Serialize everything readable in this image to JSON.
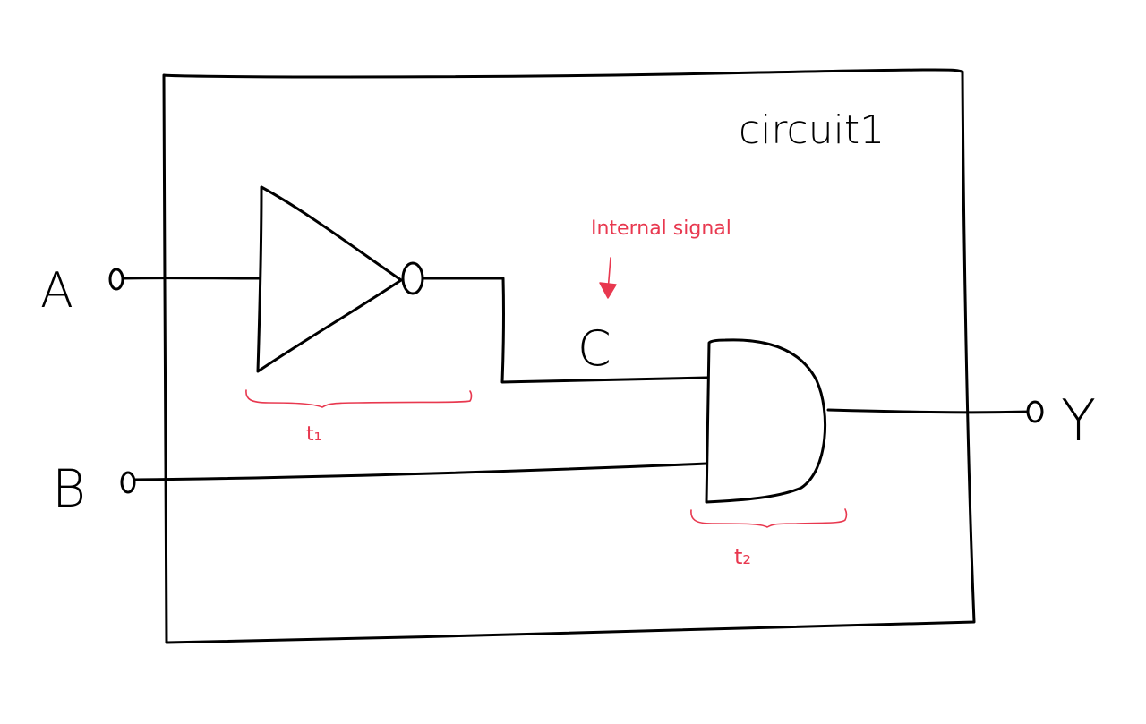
{
  "diagram": {
    "title": "circuit1",
    "inputs": {
      "a": "A",
      "b": "B"
    },
    "output": "Y",
    "internal_signal": {
      "name": "C",
      "annotation": "Internal signal"
    },
    "delays": {
      "t1": "t₁",
      "t2": "t₂"
    },
    "gates": [
      "NOT",
      "AND"
    ],
    "colors": {
      "ink": "#000000",
      "annotation": "#e8384f",
      "background": "#ffffff"
    }
  }
}
